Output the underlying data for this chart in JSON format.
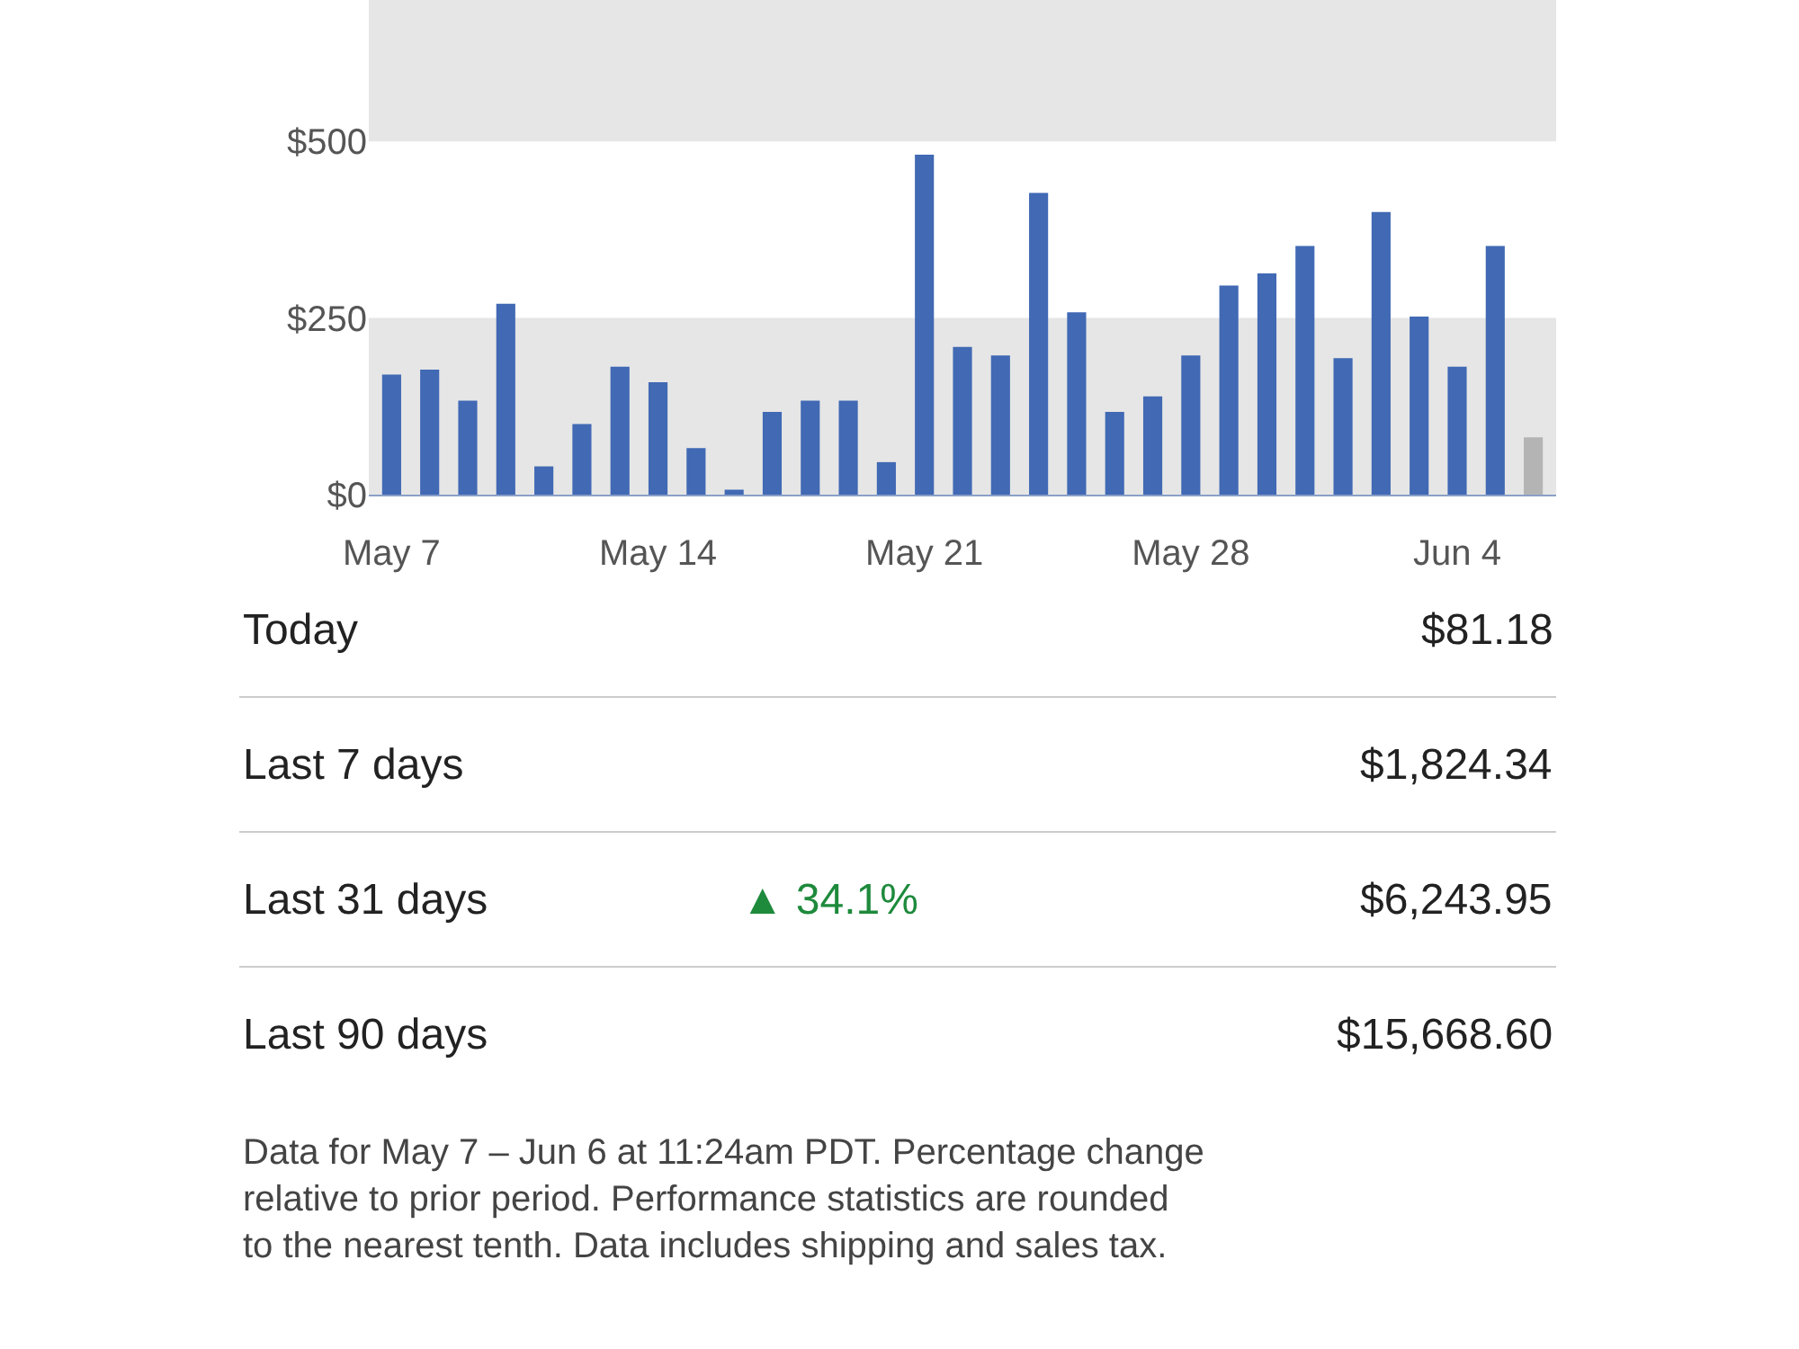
{
  "chart_data": [
    {
      "type": "bar",
      "categories": [
        "May 7",
        null,
        null,
        null,
        null,
        null,
        null,
        "May 14",
        null,
        null,
        null,
        null,
        null,
        null,
        "May 21",
        null,
        null,
        null,
        null,
        null,
        null,
        "May 28",
        null,
        null,
        null,
        null,
        null,
        null,
        "Jun 4",
        null,
        null
      ],
      "values": [
        170,
        177,
        133,
        270,
        40,
        100,
        181,
        159,
        66,
        7,
        117,
        133,
        133,
        46,
        481,
        209,
        197,
        427,
        258,
        117,
        139,
        197,
        296,
        313,
        352,
        193,
        400,
        252,
        181,
        352,
        81
      ],
      "colors": [
        "#4169b4",
        "#4169b4",
        "#4169b4",
        "#4169b4",
        "#4169b4",
        "#4169b4",
        "#4169b4",
        "#4169b4",
        "#4169b4",
        "#4169b4",
        "#4169b4",
        "#4169b4",
        "#4169b4",
        "#4169b4",
        "#4169b4",
        "#4169b4",
        "#4169b4",
        "#4169b4",
        "#4169b4",
        "#4169b4",
        "#4169b4",
        "#4169b4",
        "#4169b4",
        "#4169b4",
        "#4169b4",
        "#4169b4",
        "#4169b4",
        "#4169b4",
        "#4169b4",
        "#4169b4",
        "#b4b4b4"
      ],
      "ylim": [
        0,
        700
      ],
      "yticks": [
        {
          "value": 0,
          "label": "$0"
        },
        {
          "value": 250,
          "label": "$250"
        },
        {
          "value": 500,
          "label": "$500"
        }
      ],
      "bands": [
        {
          "axis": "y",
          "from": 0,
          "to": 250,
          "color": "#e6e6e6"
        },
        {
          "axis": "y",
          "from": 500,
          "to": 700,
          "color": "#e6e6e6"
        }
      ],
      "grid": false
    },
    {
      "type": "other",
      "annotations": [
        "Today",
        "$81.18",
        "Last 7 days",
        "$1,824.34",
        "Last 31 days",
        "▲ 34.1%",
        "$6,243.95",
        "Last 90 days",
        "$15,668.60",
        "Data for May 7 – Jun 6 at 11:24am PDT. Percentage change relative to prior period. Performance statistics are rounded to the nearest tenth. Data includes shipping and sales tax."
      ]
    }
  ]
}
